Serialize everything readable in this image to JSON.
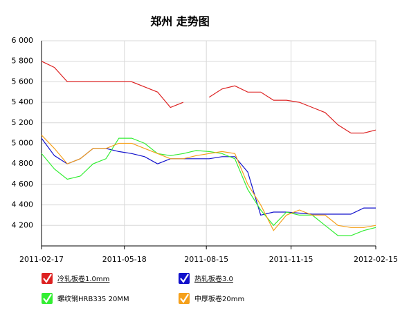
{
  "chart_data": {
    "type": "line",
    "title": "郑州 走势图",
    "x": [
      "2011-02-17",
      "2011-03-03",
      "2011-03-17",
      "2011-03-31",
      "2011-04-14",
      "2011-04-28",
      "2011-05-12",
      "2011-05-26",
      "2011-06-09",
      "2011-06-23",
      "2011-07-07",
      "2011-07-21",
      "2011-08-04",
      "2011-08-18",
      "2011-09-01",
      "2011-09-15",
      "2011-09-29",
      "2011-10-13",
      "2011-10-27",
      "2011-11-10",
      "2011-11-24",
      "2011-12-08",
      "2011-12-22",
      "2012-01-05",
      "2012-01-19",
      "2012-02-02",
      "2012-02-15"
    ],
    "xlim": [
      "2011-02-17",
      "2012-02-15"
    ],
    "xticks": [
      "2011-02-17",
      "2011-05-18",
      "2011-08-15",
      "2011-11-15",
      "2012-02-15"
    ],
    "ylim": [
      4000,
      6000
    ],
    "yticks": [
      {
        "value": 4200,
        "label": "4 200"
      },
      {
        "value": 4400,
        "label": "4 400"
      },
      {
        "value": 4600,
        "label": "4 600"
      },
      {
        "value": 4800,
        "label": "4 800"
      },
      {
        "value": 5000,
        "label": "5 000"
      },
      {
        "value": 5200,
        "label": "5 200"
      },
      {
        "value": 5400,
        "label": "5 400"
      },
      {
        "value": 5600,
        "label": "5 600"
      },
      {
        "value": 5800,
        "label": "5 800"
      },
      {
        "value": 6000,
        "label": "6 000"
      }
    ],
    "grid": true,
    "series": [
      {
        "name": "冷轧板卷1.0mm",
        "color": "#dd2222",
        "values": [
          5800,
          5740,
          5600,
          5600,
          5600,
          5600,
          5600,
          5600,
          5550,
          5500,
          5350,
          5400,
          null,
          5450,
          5530,
          5560,
          5500,
          5500,
          5420,
          5420,
          5400,
          5350,
          5300,
          5180,
          5100,
          5100,
          5130
        ]
      },
      {
        "name": "热轧板卷3.0",
        "color": "#1111cc",
        "values": [
          5050,
          4880,
          4800,
          4850,
          4950,
          4950,
          4920,
          4900,
          4870,
          4800,
          4850,
          4850,
          4850,
          4850,
          4870,
          4870,
          4720,
          4300,
          4330,
          4330,
          4320,
          4310,
          4310,
          4310,
          4310,
          4370,
          4370
        ]
      },
      {
        "name": "螺纹钢HRB335 20MM",
        "color": "#33ee33",
        "values": [
          4900,
          4750,
          4650,
          4680,
          4800,
          4850,
          5050,
          5050,
          5000,
          4900,
          4880,
          4900,
          4930,
          4920,
          4900,
          4850,
          4550,
          4350,
          4200,
          4330,
          4300,
          4300,
          4200,
          4100,
          4100,
          4150,
          4180
        ]
      },
      {
        "name": "中厚板卷20mm",
        "color": "#f5a01a",
        "values": [
          5080,
          4950,
          4800,
          4850,
          4950,
          4950,
          5000,
          5000,
          4950,
          4900,
          4850,
          4850,
          4880,
          4900,
          4920,
          4900,
          4600,
          4400,
          4150,
          4300,
          4350,
          4300,
          4300,
          4200,
          4180,
          4180,
          4200
        ]
      }
    ]
  }
}
